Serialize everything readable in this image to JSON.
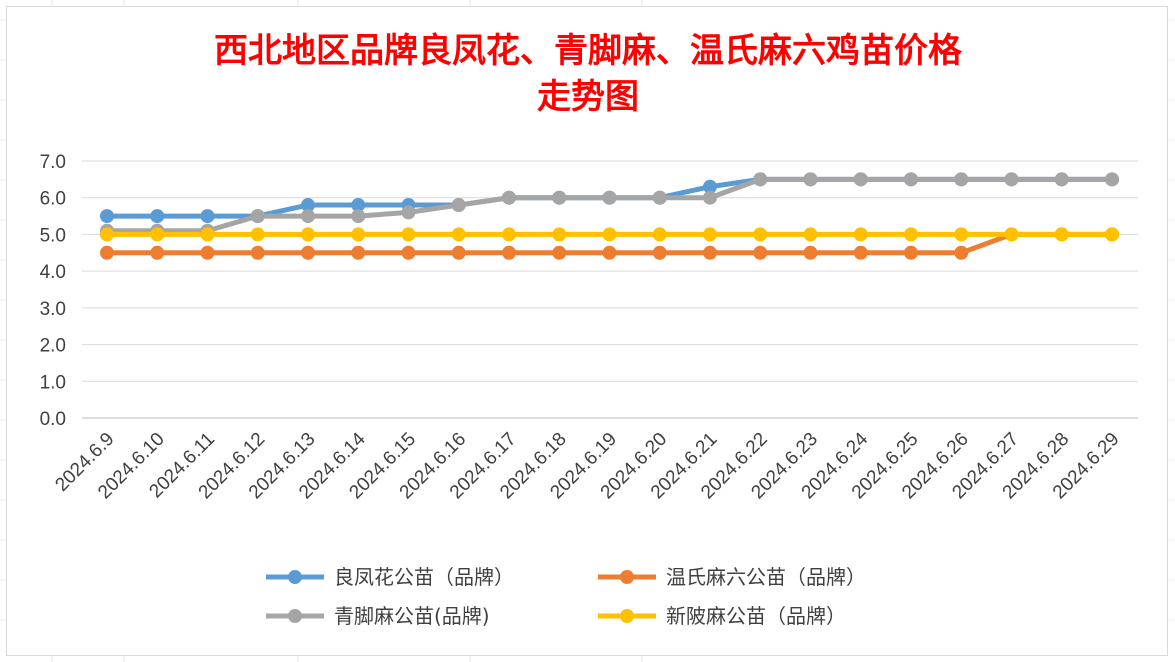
{
  "chart_data": {
    "type": "line",
    "title_lines": [
      "西北地区品牌良凤花、青脚麻、温氏麻六鸡苗价格",
      "走势图"
    ],
    "xlabel": "",
    "ylabel": "",
    "ylim": [
      0,
      7
    ],
    "yticks": [
      "0.0",
      "1.0",
      "2.0",
      "3.0",
      "4.0",
      "5.0",
      "6.0",
      "7.0"
    ],
    "grid": "horizontal",
    "legend_position": "bottom",
    "categories": [
      "2024.6.9",
      "2024.6.10",
      "2024.6.11",
      "2024.6.12",
      "2024.6.13",
      "2024.6.14",
      "2024.6.15",
      "2024.6.16",
      "2024.6.17",
      "2024.6.18",
      "2024.6.19",
      "2024.6.20",
      "2024.6.21",
      "2024.6.22",
      "2024.6.23",
      "2024.6.24",
      "2024.6.25",
      "2024.6.26",
      "2024.6.27",
      "2024.6.28",
      "2024.6.29"
    ],
    "series": [
      {
        "name": "良凤花公苗（品牌）",
        "color": "#5b9bd5",
        "values": [
          5.5,
          5.5,
          5.5,
          5.5,
          5.8,
          5.8,
          5.8,
          5.8,
          6.0,
          6.0,
          6.0,
          6.0,
          6.3,
          6.5,
          6.5,
          6.5,
          6.5,
          6.5,
          6.5,
          6.5,
          6.5
        ]
      },
      {
        "name": "温氏麻六公苗（品牌）",
        "color": "#ed7d31",
        "values": [
          4.5,
          4.5,
          4.5,
          4.5,
          4.5,
          4.5,
          4.5,
          4.5,
          4.5,
          4.5,
          4.5,
          4.5,
          4.5,
          4.5,
          4.5,
          4.5,
          4.5,
          4.5,
          5.0,
          5.0,
          5.0
        ]
      },
      {
        "name": "青脚麻公苗(品牌)",
        "color": "#a5a5a5",
        "values": [
          5.1,
          5.1,
          5.1,
          5.5,
          5.5,
          5.5,
          5.6,
          5.8,
          6.0,
          6.0,
          6.0,
          6.0,
          6.0,
          6.5,
          6.5,
          6.5,
          6.5,
          6.5,
          6.5,
          6.5,
          6.5
        ]
      },
      {
        "name": "新陂麻公苗（品牌）",
        "color": "#ffc000",
        "values": [
          5.0,
          5.0,
          5.0,
          5.0,
          5.0,
          5.0,
          5.0,
          5.0,
          5.0,
          5.0,
          5.0,
          5.0,
          5.0,
          5.0,
          5.0,
          5.0,
          5.0,
          5.0,
          5.0,
          5.0,
          5.0
        ]
      }
    ],
    "draw_order": [
      0,
      1,
      2,
      3
    ]
  }
}
